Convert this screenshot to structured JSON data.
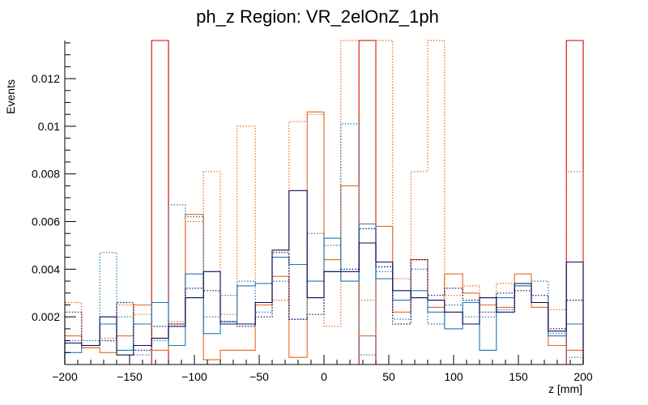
{
  "chart_data": {
    "type": "histogram",
    "title": "ph_z Region: VR_2elOnZ_1ph",
    "xlabel": "z [mm]",
    "ylabel": "Events",
    "xlim": [
      -200,
      200
    ],
    "ylim": [
      0,
      0.0136
    ],
    "grid": false,
    "legend": "none",
    "bin_edges": [
      -200,
      -187,
      -173,
      -160,
      -147,
      -133,
      -120,
      -107,
      -93,
      -80,
      -67,
      -53,
      -40,
      -27,
      -13,
      0,
      13,
      27,
      40,
      53,
      67,
      80,
      93,
      107,
      120,
      133,
      147,
      160,
      173,
      187,
      200
    ],
    "x_ticks": [
      -200,
      -150,
      -100,
      -50,
      0,
      50,
      100,
      150,
      200
    ],
    "x_tick_labels": [
      "−200",
      "−150",
      "−100",
      "−50",
      "0",
      "50",
      "100",
      "150",
      "200"
    ],
    "y_ticks": [
      0.002,
      0.004,
      0.006,
      0.008,
      0.01,
      0.012
    ],
    "y_tick_labels": [
      "0.002",
      "0.004",
      "0.006",
      "0.008",
      "0.01",
      "0.012"
    ],
    "series": [
      {
        "color": "#cc0000",
        "style": "solid",
        "values": [
          0,
          0,
          0,
          0,
          0,
          0.0136,
          0,
          0,
          0,
          0,
          0,
          0,
          0,
          0,
          0,
          0,
          0,
          0.0136,
          0,
          0,
          0,
          0,
          0,
          0,
          0,
          0,
          0,
          0,
          0,
          0.0136
        ]
      },
      {
        "color": "#e8691b",
        "style": "solid",
        "values": [
          0.0012,
          0.0007,
          0.0005,
          0.0012,
          0.0025,
          0.0006,
          0.0017,
          0.0063,
          0.0002,
          0.0006,
          0.0006,
          0.0025,
          0.0037,
          0.0003,
          0.0106,
          0.0044,
          0.0075,
          0.0012,
          0.0058,
          0.0022,
          0.0044,
          0.0024,
          0.0038,
          0.003,
          0.0025,
          0.0024,
          0.0038,
          0.0024,
          0.0008,
          0.0006
        ]
      },
      {
        "color": "#e8691b",
        "style": "dotted",
        "values": [
          0.0026,
          0.0007,
          0.0011,
          0.0025,
          0.0021,
          0.0011,
          0.0018,
          0.006,
          0.0081,
          0.0021,
          0.01,
          0.0034,
          0.0027,
          0.0102,
          0.0105,
          0.0016,
          0.0136,
          0.0027,
          0.0136,
          0.0036,
          0.0081,
          0.0136,
          0.0029,
          0.0033,
          0.0028,
          0.0034,
          0.0034,
          0.0026,
          0.0023,
          0.0081
        ]
      },
      {
        "color": "#1f77b4",
        "style": "solid",
        "values": [
          0.0005,
          0.0008,
          0.0017,
          0.0006,
          0.0017,
          0.0026,
          0.0008,
          0.0038,
          0.0013,
          0.0018,
          0.0033,
          0.0034,
          0.0045,
          0.0042,
          0.0035,
          0.0053,
          0.0035,
          0.0059,
          0.0036,
          0.0027,
          0.0031,
          0.0022,
          0.0015,
          0.0026,
          0.0006,
          0.0028,
          0.0033,
          0.0026,
          0.0012,
          0.0017
        ]
      },
      {
        "color": "#1f77b4",
        "style": "dotted",
        "values": [
          0.001,
          0.001,
          0.0047,
          0.002,
          0.0004,
          0.001,
          0.0067,
          0.0062,
          0.002,
          0.0029,
          0.0035,
          0.0022,
          0.0035,
          0.0019,
          0.0055,
          0.005,
          0.0101,
          0.0004,
          0.0039,
          0.0019,
          0.004,
          0.0017,
          0.0025,
          0.002,
          0.002,
          0.0023,
          0.0033,
          0.0035,
          0.0013,
          0.0003
        ]
      },
      {
        "color": "#0c0c5e",
        "style": "solid",
        "values": [
          0.0009,
          0.0008,
          0.002,
          0.0004,
          0.0008,
          0.0011,
          0.0016,
          0.0028,
          0.0039,
          0.0017,
          0.0017,
          0.0026,
          0.0048,
          0.0073,
          0.0028,
          0.0039,
          0.0039,
          0.0051,
          0.0043,
          0.0031,
          0.0028,
          0.0027,
          0.0022,
          0.0017,
          0.0028,
          0.0022,
          0.0034,
          0.0026,
          0.0014,
          0.0043
        ]
      },
      {
        "color": "#0c0c5e",
        "style": "dotted",
        "values": [
          0.0022,
          0.0008,
          0.001,
          0.0026,
          0.0006,
          0.0016,
          0.0017,
          0.0032,
          0.0031,
          0.0018,
          0.0016,
          0.002,
          0.0047,
          0.0019,
          0.0021,
          0.0039,
          0.004,
          0.0057,
          0.0041,
          0.0017,
          0.0044,
          0.0029,
          0.0032,
          0.0027,
          0.0022,
          0.003,
          0.0031,
          0.0029,
          0.0015,
          0.0027
        ]
      }
    ]
  }
}
